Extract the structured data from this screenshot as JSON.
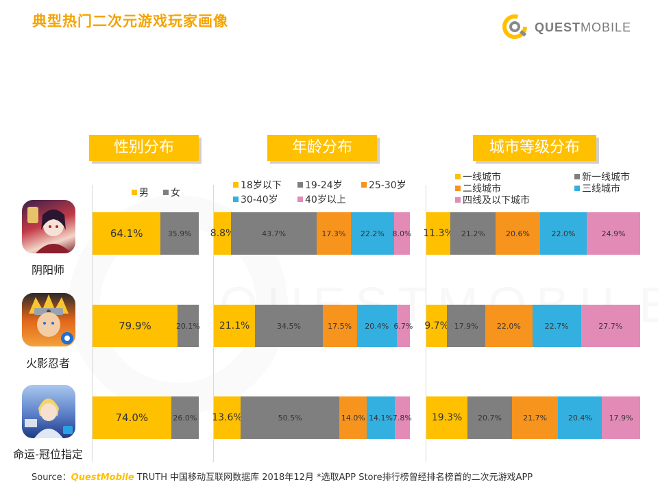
{
  "title": "典型热门二次元游戏玩家画像",
  "logo": {
    "text_bold": "QUEST",
    "text_light": "MOBILE"
  },
  "watermark_text": "QUESTMOBILE",
  "panels": [
    {
      "id": "gender",
      "header": "性别分布"
    },
    {
      "id": "age",
      "header": "年龄分布"
    },
    {
      "id": "city",
      "header": "城市等级分布"
    }
  ],
  "apps": [
    {
      "name": "阴阳师",
      "icon": "onmyoji-game-icon"
    },
    {
      "name": "火影忍者",
      "icon": "naruto-game-icon"
    },
    {
      "name": "命运-冠位指定",
      "icon": "fate-grand-order-game-icon"
    }
  ],
  "chart_data": [
    {
      "type": "bar",
      "stacked": true,
      "orientation": "horizontal",
      "title": "性别分布",
      "categories": [
        "阴阳师",
        "火影忍者",
        "命运-冠位指定"
      ],
      "series": [
        {
          "name": "男",
          "color": "#ffc000",
          "values": [
            64.1,
            79.9,
            74.0
          ],
          "labels": [
            "64.1%",
            "79.9%",
            "74.0%"
          ]
        },
        {
          "name": "女",
          "color": "#7f7f7f",
          "values": [
            35.9,
            20.1,
            26.0
          ],
          "labels": [
            "35.9%",
            "20.1%",
            "26.0%"
          ]
        }
      ]
    },
    {
      "type": "bar",
      "stacked": true,
      "orientation": "horizontal",
      "title": "年龄分布",
      "categories": [
        "阴阳师",
        "火影忍者",
        "命运-冠位指定"
      ],
      "series": [
        {
          "name": "18岁以下",
          "color": "#ffc000",
          "values": [
            8.8,
            21.1,
            13.6
          ],
          "labels": [
            "8.8%",
            "21.1%",
            "13.6%"
          ]
        },
        {
          "name": "19-24岁",
          "color": "#7f7f7f",
          "values": [
            43.7,
            34.5,
            50.5
          ],
          "labels": [
            "43.7%",
            "34.5%",
            "50.5%"
          ]
        },
        {
          "name": "25-30岁",
          "color": "#f7941d",
          "values": [
            17.3,
            17.5,
            14.0
          ],
          "labels": [
            "17.3%",
            "17.5%",
            "14.0%"
          ]
        },
        {
          "name": "30-40岁",
          "color": "#33b0e0",
          "values": [
            22.2,
            20.4,
            14.1
          ],
          "labels": [
            "22.2%",
            "20.4%",
            "14.1%"
          ]
        },
        {
          "name": "40岁以上",
          "color": "#e38bb7",
          "values": [
            8.0,
            6.7,
            7.8
          ],
          "labels": [
            "8.0%",
            "6.7%",
            "7.8%"
          ]
        }
      ]
    },
    {
      "type": "bar",
      "stacked": true,
      "orientation": "horizontal",
      "title": "城市等级分布",
      "categories": [
        "阴阳师",
        "火影忍者",
        "命运-冠位指定"
      ],
      "series": [
        {
          "name": "一线城市",
          "color": "#ffc000",
          "values": [
            11.3,
            9.7,
            19.3
          ],
          "labels": [
            "11.3%",
            "9.7%",
            "19.3%"
          ]
        },
        {
          "name": "新一线城市",
          "color": "#7f7f7f",
          "values": [
            21.2,
            17.9,
            20.7
          ],
          "labels": [
            "21.2%",
            "17.9%",
            "20.7%"
          ]
        },
        {
          "name": "二线城市",
          "color": "#f7941d",
          "values": [
            20.6,
            22.0,
            21.7
          ],
          "labels": [
            "20.6%",
            "22.0%",
            "21.7%"
          ]
        },
        {
          "name": "三线城市",
          "color": "#33b0e0",
          "values": [
            22.0,
            22.7,
            20.4
          ],
          "labels": [
            "22.0%",
            "22.7%",
            "20.4%"
          ]
        },
        {
          "name": "四线及以下城市",
          "color": "#e38bb7",
          "values": [
            24.9,
            27.7,
            17.9
          ],
          "labels": [
            "24.9%",
            "27.7%",
            "17.9%"
          ]
        }
      ]
    }
  ],
  "source": {
    "prefix": "Source：",
    "brand": "QuestMobile",
    "text": " TRUTH 中国移动互联网数据库 2018年12月   *选取APP Store排行榜曾经排名榜首的二次元游戏APP"
  }
}
